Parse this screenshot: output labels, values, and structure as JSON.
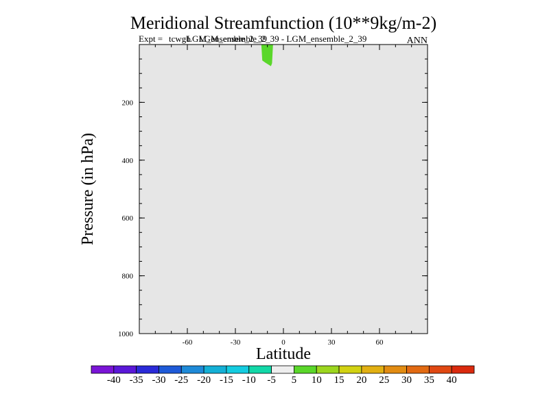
{
  "chart_data": {
    "type": "heatmap",
    "title": "Meridional Streamfunction (10**9kg/m-2)",
    "subtitle_left_prefix": "Expt = ",
    "subtitle_left_names": [
      "tcwgb",
      "LGM_ensemble_2_39"
    ],
    "subtitle_center": "LGM_ensemble_2_39 - LGM_ensemble_2_39",
    "subtitle_right": "ANN",
    "xlabel": "Latitude",
    "ylabel": "Pressure (in hPa)",
    "xlim": [
      -90,
      90
    ],
    "ylim": [
      0,
      1000
    ],
    "y_inverted": true,
    "x_ticks": [
      -60,
      -30,
      0,
      30,
      60
    ],
    "x_minor_step": 10,
    "y_ticks": [
      200,
      400,
      600,
      800,
      1000
    ],
    "y_minor_step": 50,
    "background_color": "#e6e6e6",
    "filled_regions": [
      {
        "name": "positive-anomaly-patch",
        "value_band": "5 to 10",
        "color": "#5ad72a",
        "polygon": [
          [
            -13.8,
            0
          ],
          [
            -6.5,
            0
          ],
          [
            -7.1,
            65
          ],
          [
            -7.8,
            75
          ],
          [
            -11.5,
            62
          ],
          [
            -13.2,
            55
          ]
        ]
      }
    ],
    "colorbar": {
      "labels": [
        "-40",
        "-35",
        "-30",
        "-25",
        "-20",
        "-15",
        "-10",
        "-5",
        "5",
        "10",
        "15",
        "20",
        "25",
        "30",
        "35",
        "40"
      ],
      "colors": [
        "#7a14d6",
        "#5a18d8",
        "#2a2ad8",
        "#1e5ad8",
        "#1e8ad8",
        "#14b0d6",
        "#14cce0",
        "#12d8a8",
        "#eeeeee",
        "#5ad72a",
        "#9cd61e",
        "#d2d212",
        "#e2b012",
        "#e28c12",
        "#e26a12",
        "#e04812",
        "#da2a0e"
      ]
    }
  }
}
